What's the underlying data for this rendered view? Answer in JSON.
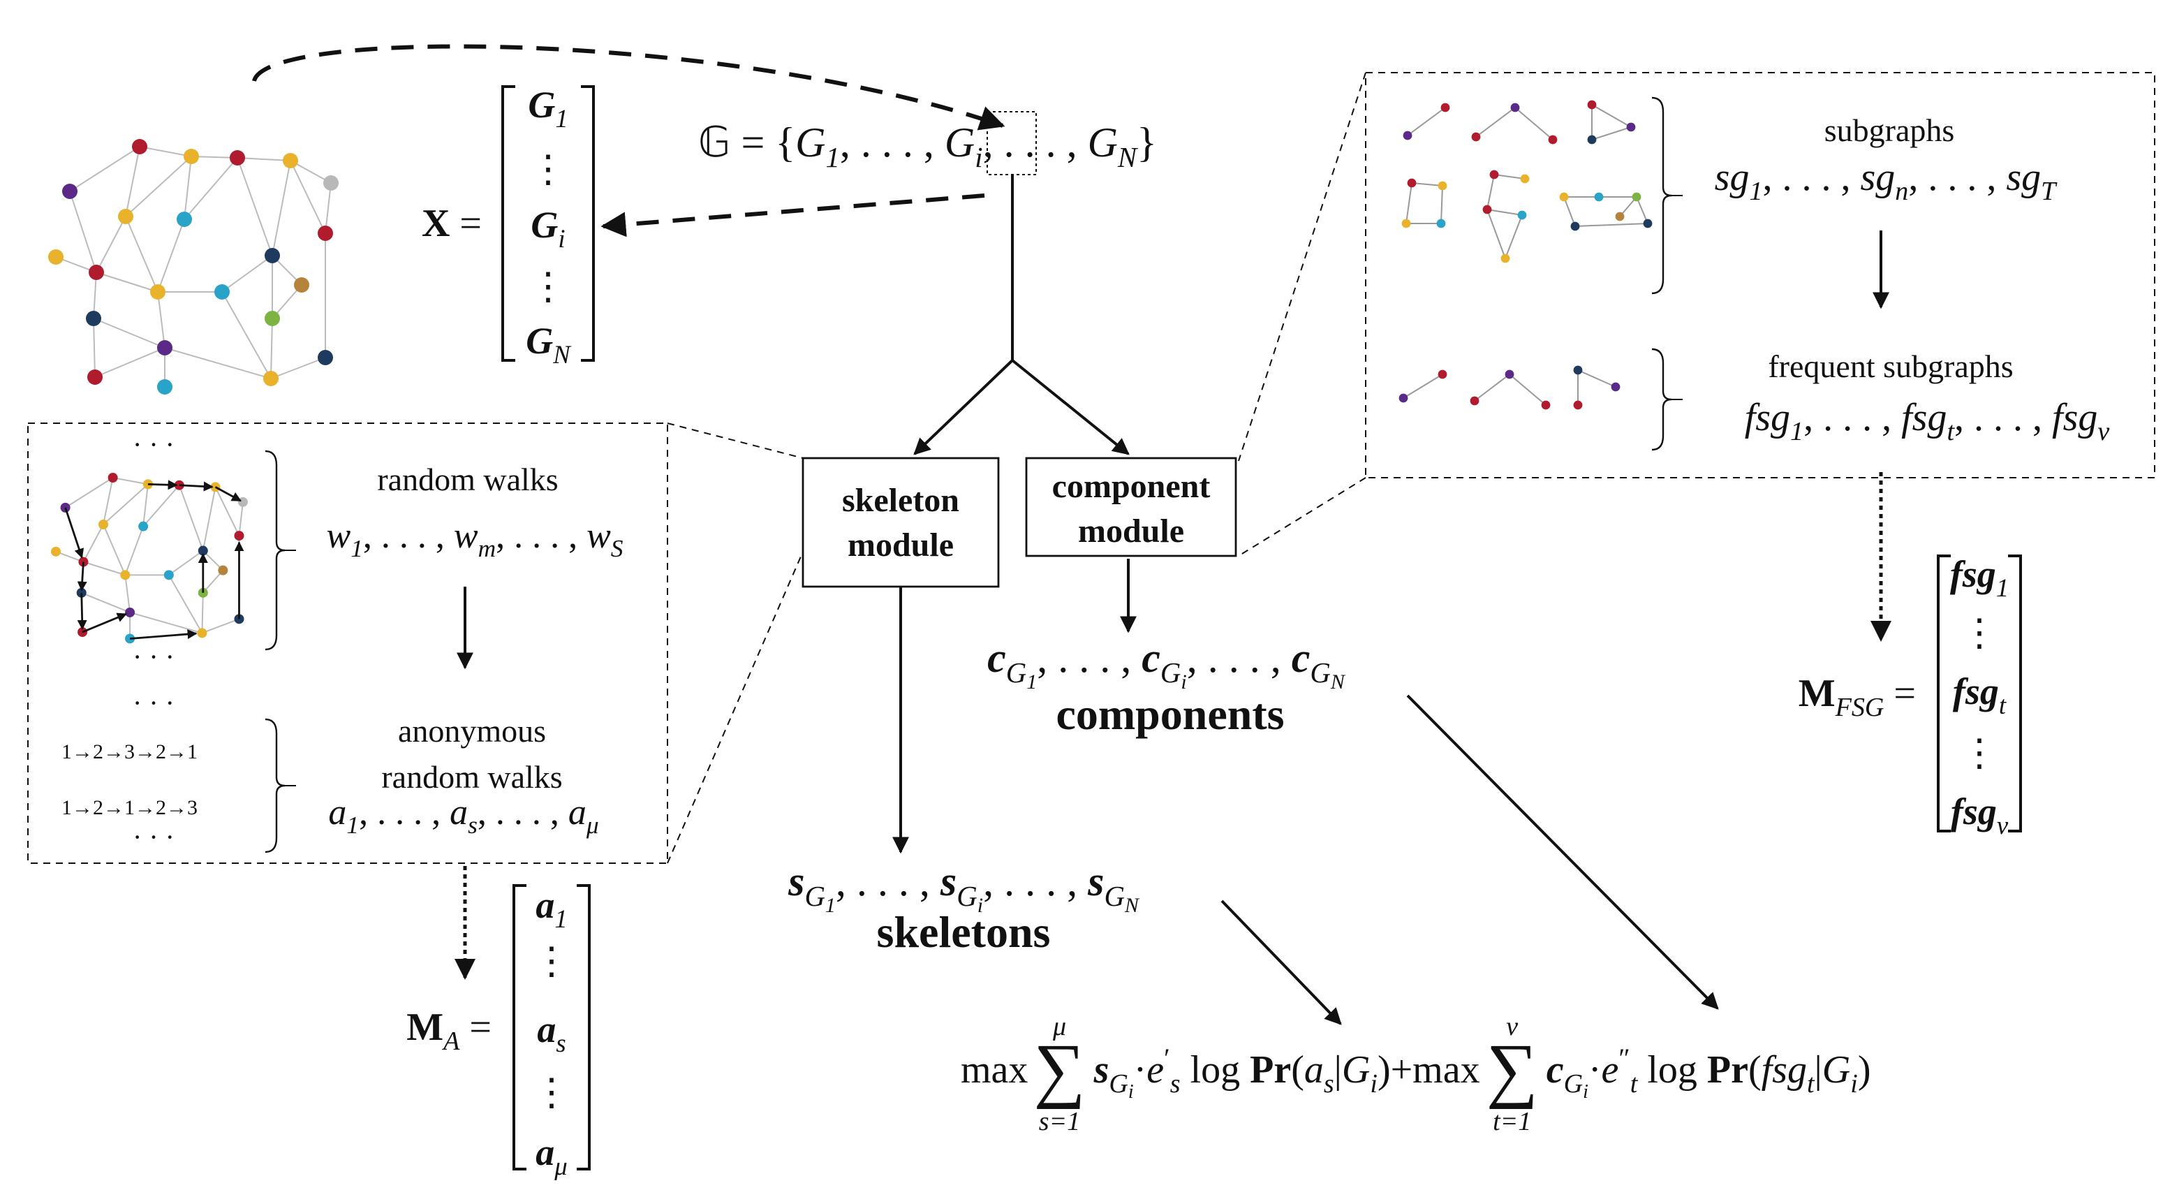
{
  "graph_set": [
    "𝔾 = {",
    {
      "i": "G"
    },
    {
      "sub": "1"
    },
    ", . . . , ",
    {
      "i": "G"
    },
    {
      "sub": "i"
    },
    ", . . . , ",
    {
      "i": "G"
    },
    {
      "sub": "N"
    },
    "}"
  ],
  "x_matrix": {
    "label": [
      {
        "b": "X"
      },
      " ="
    ],
    "entries": [
      [
        {
          "bi": "G"
        },
        {
          "sub": "1"
        }
      ],
      [
        "⋮"
      ],
      [
        {
          "bi": "G"
        },
        {
          "sub": "i"
        }
      ],
      [
        "⋮"
      ],
      [
        {
          "bi": "G"
        },
        {
          "sub": "N"
        }
      ]
    ]
  },
  "skeleton_module": [
    "skeleton",
    "module"
  ],
  "component_module": [
    "component",
    "module"
  ],
  "random_walks": {
    "label": "random walks",
    "sequence": [
      {
        "i": "w"
      },
      {
        "sub": "1"
      },
      ", . . . , ",
      {
        "i": "w"
      },
      {
        "sub": "m"
      },
      ", . . . , ",
      {
        "i": "w"
      },
      {
        "sub": "S"
      }
    ]
  },
  "anonymous_walks": {
    "label": [
      "anonymous",
      "random walks"
    ],
    "sequence": [
      {
        "i": "a"
      },
      {
        "sub": "1"
      },
      ", . . . , ",
      {
        "i": "a"
      },
      {
        "sub": "s"
      },
      ", . . . , ",
      {
        "i": "a"
      },
      {
        "sub": "μ"
      }
    ],
    "examples": [
      "1→2→3→2→1",
      "1→2→1→2→3"
    ]
  },
  "ellipsis": "· · ·",
  "m_a": {
    "label": [
      {
        "b": "M"
      },
      {
        "sub": "A"
      },
      " ="
    ],
    "entries": [
      [
        {
          "bi": "a"
        },
        {
          "sub": "1"
        }
      ],
      [
        "⋮"
      ],
      [
        {
          "bi": "a"
        },
        {
          "sub": "s"
        }
      ],
      [
        "⋮"
      ],
      [
        {
          "bi": "a"
        },
        {
          "sub": "μ"
        }
      ]
    ]
  },
  "subgraphs": {
    "label": "subgraphs",
    "sequence": [
      {
        "i": "sg"
      },
      {
        "sub": "1"
      },
      ", . . . , ",
      {
        "i": "sg"
      },
      {
        "sub": "n"
      },
      ", . . . , ",
      {
        "i": "sg"
      },
      {
        "sub": "T"
      }
    ]
  },
  "frequent_subgraphs": {
    "label": "frequent subgraphs",
    "sequence": [
      {
        "i": "fsg"
      },
      {
        "sub": "1"
      },
      ", . . . , ",
      {
        "i": "fsg"
      },
      {
        "sub": "t"
      },
      ", . . . , ",
      {
        "i": "fsg"
      },
      {
        "sub": "ν"
      }
    ]
  },
  "m_fsg": {
    "label": [
      {
        "b": "M"
      },
      {
        "sub": "FSG"
      },
      " ="
    ],
    "entries": [
      [
        {
          "bi": "fsg"
        },
        {
          "sub": "1"
        }
      ],
      [
        "⋮"
      ],
      [
        {
          "bi": "fsg"
        },
        {
          "sub": "t"
        }
      ],
      [
        "⋮"
      ],
      [
        {
          "bi": "fsg"
        },
        {
          "sub": "ν"
        }
      ]
    ]
  },
  "components": {
    "sequence": [
      {
        "bi": "c"
      },
      {
        "sub": "G"
      },
      {
        "subsub": "1"
      },
      ", . . . , ",
      {
        "bi": "c"
      },
      {
        "sub": "G"
      },
      {
        "subsub": "i"
      },
      ", . . . , ",
      {
        "bi": "c"
      },
      {
        "sub": "G"
      },
      {
        "subsub": "N"
      }
    ],
    "label": "components"
  },
  "skeletons": {
    "sequence": [
      {
        "bi": "s"
      },
      {
        "sub": "G"
      },
      {
        "subsub": "1"
      },
      ", . . . , ",
      {
        "bi": "s"
      },
      {
        "sub": "G"
      },
      {
        "subsub": "i"
      },
      ", . . . , ",
      {
        "bi": "s"
      },
      {
        "sub": "G"
      },
      {
        "subsub": "N"
      }
    ],
    "label": "skeletons"
  },
  "objective": [
    [
      "max"
    ],
    {
      "symbol": "∑",
      "upper": "μ",
      "lower": "s=1"
    },
    [
      {
        "bi": "s"
      },
      {
        "sub": "G"
      },
      {
        "subsub": "i"
      },
      "·",
      {
        "i": "e"
      },
      {
        "sup": "′"
      },
      {
        "sub": "s"
      },
      " log ",
      {
        "b": "Pr"
      },
      "(",
      {
        "i": "a"
      },
      {
        "sub": "s"
      },
      "|",
      {
        "i": "G"
      },
      {
        "sub": "i"
      },
      ")+max"
    ],
    {
      "symbol": "∑",
      "upper": "ν",
      "lower": "t=1"
    },
    [
      {
        "bi": "c"
      },
      {
        "sub": "G"
      },
      {
        "subsub": "i"
      },
      "·",
      {
        "i": "e"
      },
      {
        "sup": "″"
      },
      {
        "sub": "t"
      },
      " log ",
      {
        "b": "Pr"
      },
      "(",
      {
        "i": "fsg"
      },
      {
        "sub": "t"
      },
      "|",
      {
        "i": "G"
      },
      {
        "sub": "i"
      },
      ")"
    ]
  ]
}
